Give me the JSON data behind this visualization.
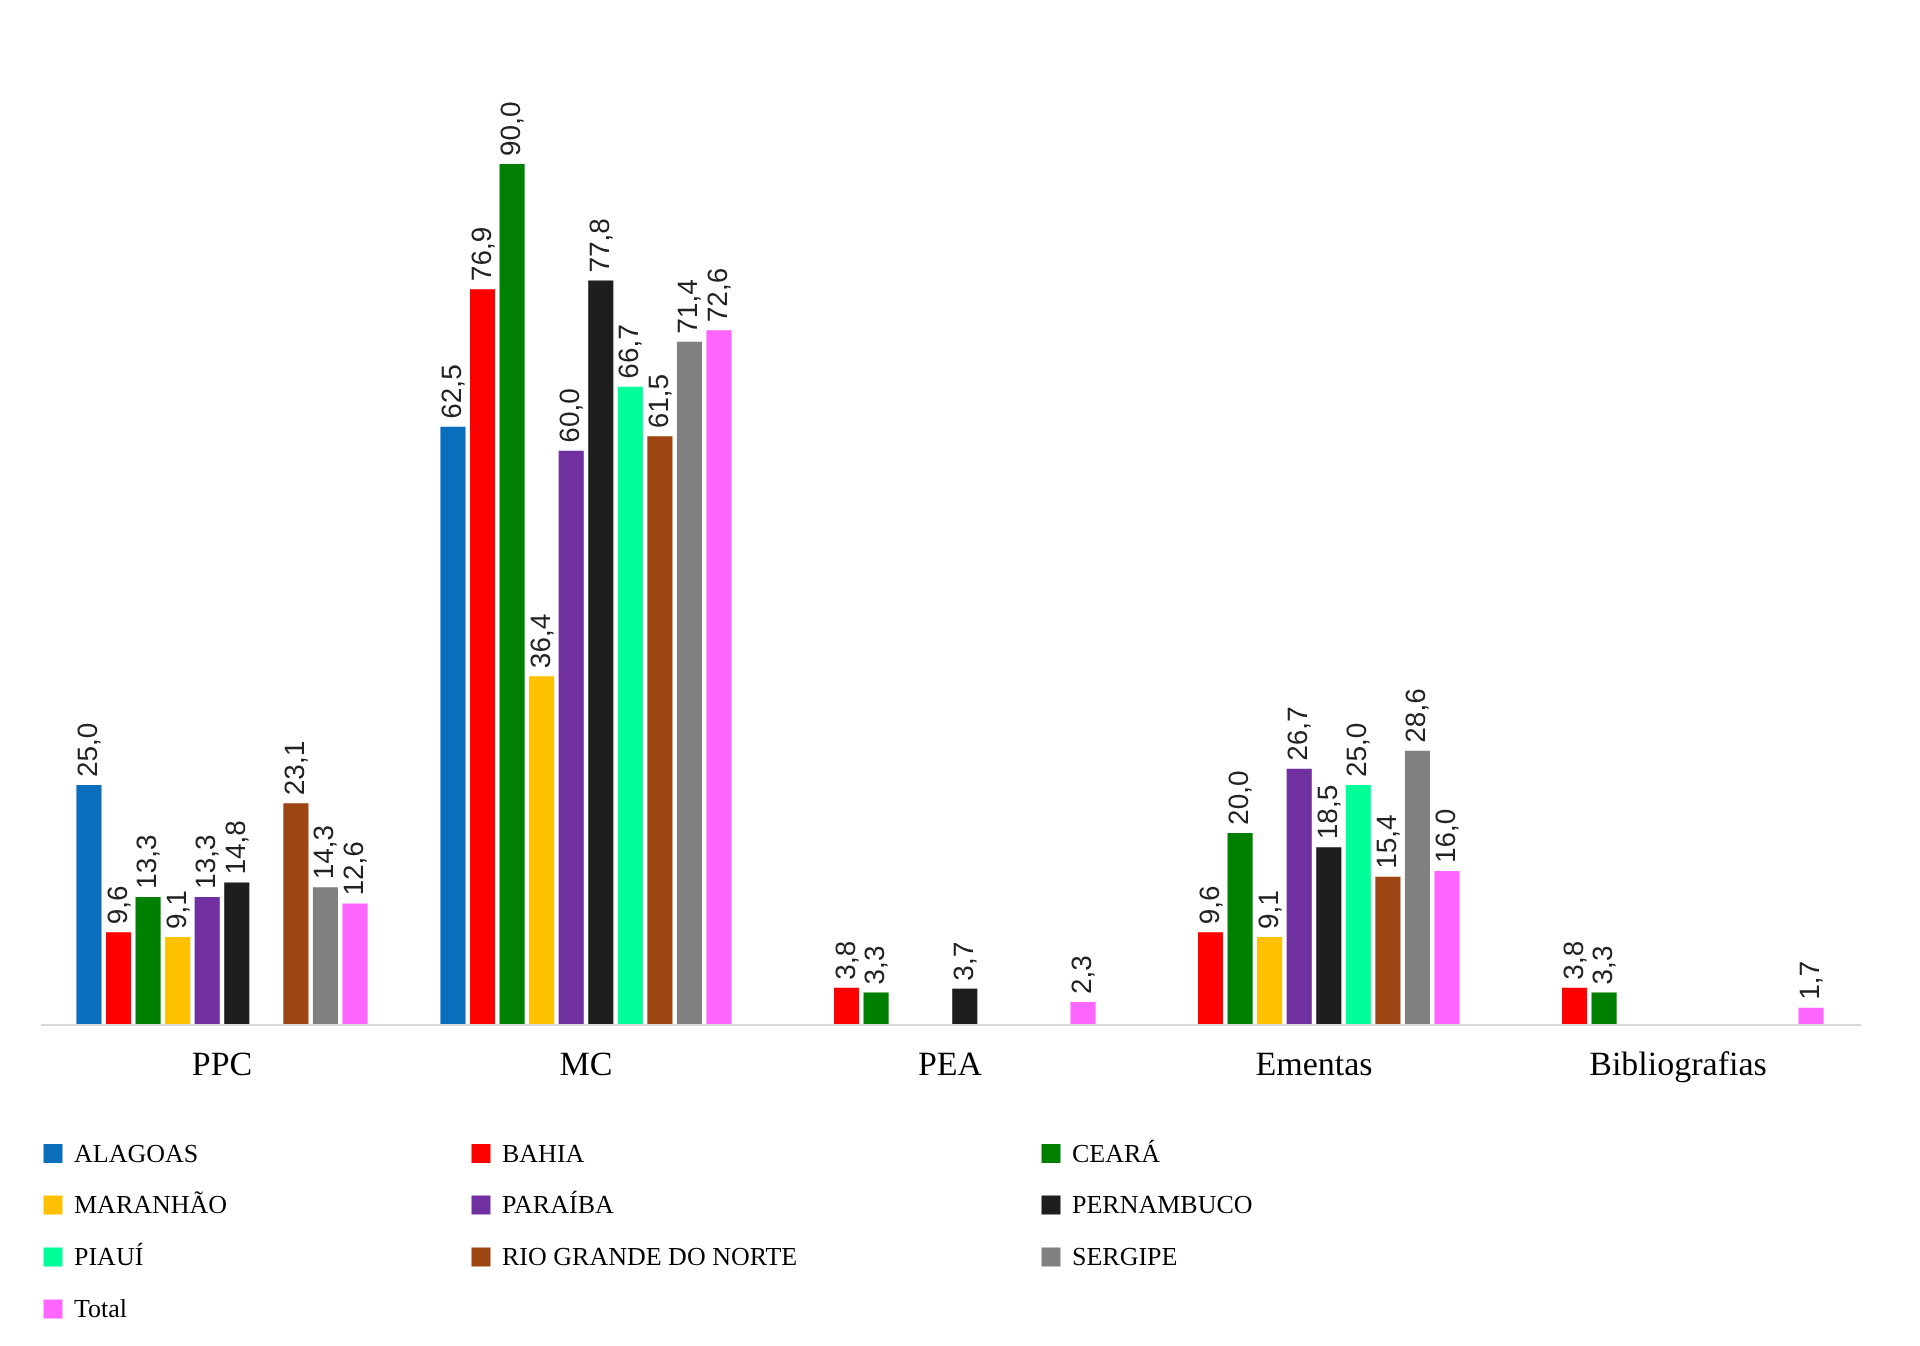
{
  "chart_data": {
    "type": "bar",
    "categories": [
      "PPC",
      "MC",
      "PEA",
      "Ementas",
      "Bibliografias"
    ],
    "legend": "bottom",
    "series": [
      {
        "name": "ALAGOAS",
        "color": "#0a6ebd",
        "values": [
          25.0,
          62.5,
          null,
          null,
          null
        ],
        "value_labels": [
          "25,0",
          "62,5",
          null,
          null,
          null
        ]
      },
      {
        "name": "BAHIA",
        "color": "#ff0000",
        "values": [
          9.6,
          76.9,
          3.8,
          9.6,
          3.8
        ],
        "value_labels": [
          "9,6",
          "76,9",
          "3,8",
          "9,6",
          "3,8"
        ]
      },
      {
        "name": "CEARÁ",
        "color": "#008000",
        "values": [
          13.3,
          90.0,
          3.3,
          20.0,
          3.3
        ],
        "value_labels": [
          "13,3",
          "90,0",
          "3,3",
          "20,0",
          "3,3"
        ]
      },
      {
        "name": "MARANHÃO",
        "color": "#ffc000",
        "values": [
          9.1,
          36.4,
          null,
          9.1,
          null
        ],
        "value_labels": [
          "9,1",
          "36,4",
          null,
          "9,1",
          null
        ]
      },
      {
        "name": "PARAÍBA",
        "color": "#7030a0",
        "values": [
          13.3,
          60.0,
          null,
          26.7,
          null
        ],
        "value_labels": [
          "13,3",
          "60,0",
          null,
          "26,7",
          null
        ]
      },
      {
        "name": "PERNAMBUCO",
        "color": "#1e1e1e",
        "values": [
          14.8,
          77.8,
          3.7,
          18.5,
          null
        ],
        "value_labels": [
          "14,8",
          "77,8",
          "3,7",
          "18,5",
          null
        ]
      },
      {
        "name": "PIAUÍ",
        "color": "#00ff99",
        "values": [
          null,
          66.7,
          null,
          25.0,
          null
        ],
        "value_labels": [
          null,
          "66,7",
          null,
          "25,0",
          null
        ]
      },
      {
        "name": "RIO GRANDE DO NORTE",
        "color": "#9c4512",
        "values": [
          23.1,
          61.5,
          null,
          15.4,
          null
        ],
        "value_labels": [
          "23,1",
          "61,5",
          null,
          "15,4",
          null
        ]
      },
      {
        "name": "SERGIPE",
        "color": "#808080",
        "values": [
          14.3,
          71.4,
          null,
          28.6,
          null
        ],
        "value_labels": [
          "14,3",
          "71,4",
          null,
          "28,6",
          null
        ]
      },
      {
        "name": "Total",
        "color": "#ff66ff",
        "values": [
          12.6,
          72.6,
          2.3,
          16.0,
          1.7
        ],
        "value_labels": [
          "12,6",
          "72,6",
          "2,3",
          "16,0",
          "1,7"
        ]
      }
    ]
  }
}
